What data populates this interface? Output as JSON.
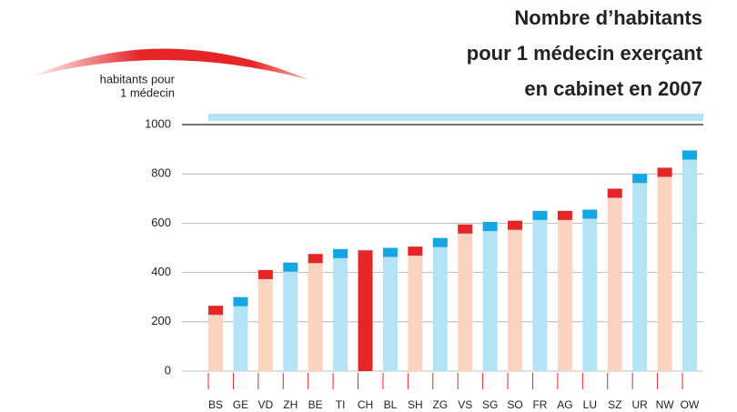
{
  "chart_data": {
    "type": "bar",
    "title": [
      "Nombre d’habitants",
      "pour 1 médecin exerçant",
      "en cabinet en 2007"
    ],
    "ylabel": [
      "habitants pour",
      "1 médecin"
    ],
    "categories": [
      "BS",
      "GE",
      "VD",
      "ZH",
      "BE",
      "TI",
      "CH",
      "BL",
      "SH",
      "ZG",
      "VS",
      "SG",
      "SO",
      "FR",
      "AG",
      "LU",
      "SZ",
      "UR",
      "NW",
      "OW"
    ],
    "values": [
      265,
      300,
      410,
      440,
      475,
      495,
      490,
      500,
      505,
      540,
      595,
      605,
      610,
      650,
      650,
      655,
      740,
      800,
      825,
      895
    ],
    "cap_colors": [
      "#e42629",
      "#14a5e3",
      "#e42629",
      "#14a5e3",
      "#e42629",
      "#14a5e3",
      "#e42629",
      "#14a5e3",
      "#e42629",
      "#14a5e3",
      "#e42629",
      "#14a5e3",
      "#e42629",
      "#14a5e3",
      "#e42629",
      "#14a5e3",
      "#e42629",
      "#14a5e3",
      "#e42629",
      "#14a5e3"
    ],
    "body_colors": [
      "#fad3c1",
      "#b5e3f6",
      "#fad3c1",
      "#b5e3f6",
      "#fad3c1",
      "#b5e3f6",
      "#e42629",
      "#b5e3f6",
      "#fad3c1",
      "#b5e3f6",
      "#fad3c1",
      "#b5e3f6",
      "#fad3c1",
      "#b5e3f6",
      "#fad3c1",
      "#b5e3f6",
      "#fad3c1",
      "#b5e3f6",
      "#fad3c1",
      "#b5e3f6"
    ],
    "highlight_index": 6,
    "highlight_color": "#e42629",
    "title_color": "#e42629",
    "ylim": [
      0,
      1000
    ],
    "yticks": [
      0,
      200,
      400,
      600,
      800,
      1000
    ],
    "grid": true
  }
}
